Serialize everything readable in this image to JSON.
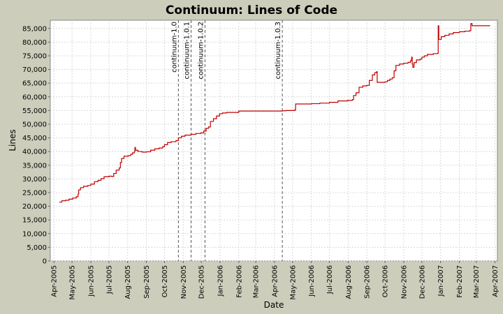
{
  "chart_data": {
    "type": "line",
    "title": "Continuum: Lines of Code",
    "xlabel": "Date",
    "ylabel": "Lines",
    "ylim": [
      0,
      88000
    ],
    "y_ticks": [
      0,
      5000,
      10000,
      15000,
      20000,
      25000,
      30000,
      35000,
      40000,
      45000,
      50000,
      55000,
      60000,
      65000,
      70000,
      75000,
      80000,
      85000
    ],
    "y_tick_labels": [
      "0",
      "5,000",
      "10,000",
      "15,000",
      "20,000",
      "25,000",
      "30,000",
      "35,000",
      "40,000",
      "45,000",
      "50,000",
      "55,000",
      "60,000",
      "65,000",
      "70,000",
      "75,000",
      "80,000",
      "85,000"
    ],
    "xlim": [
      "2005-03-26",
      "2007-04-05"
    ],
    "x_ticks": [
      "2005-04-01",
      "2005-05-01",
      "2005-06-01",
      "2005-07-01",
      "2005-08-01",
      "2005-09-01",
      "2005-10-01",
      "2005-11-01",
      "2005-12-01",
      "2006-01-01",
      "2006-02-01",
      "2006-03-01",
      "2006-04-01",
      "2006-05-01",
      "2006-06-01",
      "2006-07-01",
      "2006-08-01",
      "2006-09-01",
      "2006-10-01",
      "2006-11-01",
      "2006-12-01",
      "2007-01-01",
      "2007-02-01",
      "2007-03-01",
      "2007-04-01"
    ],
    "x_tick_labels": [
      "Apr-2005",
      "May-2005",
      "Jun-2005",
      "Jul-2005",
      "Aug-2005",
      "Sep-2005",
      "Oct-2005",
      "Nov-2005",
      "Dec-2005",
      "Jan-2006",
      "Feb-2006",
      "Mar-2006",
      "Apr-2006",
      "May-2006",
      "Jun-2006",
      "Jul-2006",
      "Aug-2006",
      "Sep-2006",
      "Oct-2006",
      "Nov-2006",
      "Dec-2006",
      "Jan-2007",
      "Feb-2007",
      "Mar-2007",
      "Apr-2007"
    ],
    "grid": true,
    "legend": "none",
    "markers": [
      {
        "label": "continuum-1.0",
        "date": "2005-10-24"
      },
      {
        "label": "continuum-1.0.1",
        "date": "2005-11-14"
      },
      {
        "label": "continuum-1.0.2",
        "date": "2005-12-07"
      },
      {
        "label": "continuum-1.0.3",
        "date": "2006-04-14"
      }
    ],
    "series": [
      {
        "color": "#c00000",
        "points": [
          [
            "2005-04-10",
            21500
          ],
          [
            "2005-04-14",
            22000
          ],
          [
            "2005-04-20",
            22200
          ],
          [
            "2005-04-26",
            22600
          ],
          [
            "2005-05-02",
            23000
          ],
          [
            "2005-05-08",
            23500
          ],
          [
            "2005-05-11",
            24500
          ],
          [
            "2005-05-12",
            26000
          ],
          [
            "2005-05-15",
            26800
          ],
          [
            "2005-05-20",
            27300
          ],
          [
            "2005-05-27",
            27600
          ],
          [
            "2005-06-01",
            28100
          ],
          [
            "2005-06-07",
            29000
          ],
          [
            "2005-06-13",
            29500
          ],
          [
            "2005-06-18",
            30100
          ],
          [
            "2005-06-23",
            30800
          ],
          [
            "2005-07-01",
            31000
          ],
          [
            "2005-07-06",
            30900
          ],
          [
            "2005-07-09",
            32000
          ],
          [
            "2005-07-13",
            33200
          ],
          [
            "2005-07-18",
            34000
          ],
          [
            "2005-07-20",
            36000
          ],
          [
            "2005-07-22",
            37500
          ],
          [
            "2005-07-26",
            38300
          ],
          [
            "2005-08-02",
            38500
          ],
          [
            "2005-08-06",
            39000
          ],
          [
            "2005-08-09",
            39500
          ],
          [
            "2005-08-12",
            40000
          ],
          [
            "2005-08-13",
            41500
          ],
          [
            "2005-08-14",
            40500
          ],
          [
            "2005-08-18",
            40000
          ],
          [
            "2005-08-25",
            39800
          ],
          [
            "2005-09-01",
            39900
          ],
          [
            "2005-09-08",
            40500
          ],
          [
            "2005-09-15",
            41000
          ],
          [
            "2005-09-22",
            41300
          ],
          [
            "2005-09-28",
            41800
          ],
          [
            "2005-10-01",
            42500
          ],
          [
            "2005-10-06",
            43300
          ],
          [
            "2005-10-12",
            43600
          ],
          [
            "2005-10-20",
            44000
          ],
          [
            "2005-10-24",
            45000
          ],
          [
            "2005-10-29",
            45600
          ],
          [
            "2005-11-04",
            46000
          ],
          [
            "2005-11-14",
            46300
          ],
          [
            "2005-11-22",
            46600
          ],
          [
            "2005-11-30",
            46800
          ],
          [
            "2005-12-05",
            47500
          ],
          [
            "2005-12-09",
            48500
          ],
          [
            "2005-12-13",
            49000
          ],
          [
            "2005-12-16",
            51000
          ],
          [
            "2005-12-21",
            52000
          ],
          [
            "2005-12-26",
            53000
          ],
          [
            "2005-12-31",
            53800
          ],
          [
            "2006-01-05",
            54100
          ],
          [
            "2006-01-12",
            54300
          ],
          [
            "2006-01-31",
            54400
          ],
          [
            "2006-02-01",
            54800
          ],
          [
            "2006-03-01",
            54800
          ],
          [
            "2006-04-14",
            54900
          ],
          [
            "2006-04-20",
            55000
          ],
          [
            "2006-05-05",
            55300
          ],
          [
            "2006-05-06",
            57400
          ],
          [
            "2006-06-01",
            57500
          ],
          [
            "2006-06-15",
            57700
          ],
          [
            "2006-07-01",
            58000
          ],
          [
            "2006-07-15",
            58500
          ],
          [
            "2006-07-31",
            58700
          ],
          [
            "2006-08-08",
            59000
          ],
          [
            "2006-08-10",
            60500
          ],
          [
            "2006-08-14",
            61500
          ],
          [
            "2006-08-19",
            63500
          ],
          [
            "2006-08-25",
            64000
          ],
          [
            "2006-09-01",
            64200
          ],
          [
            "2006-09-05",
            66000
          ],
          [
            "2006-09-10",
            68000
          ],
          [
            "2006-09-14",
            68800
          ],
          [
            "2006-09-17",
            69200
          ],
          [
            "2006-09-18",
            65300
          ],
          [
            "2006-09-25",
            65300
          ],
          [
            "2006-10-01",
            65500
          ],
          [
            "2006-10-05",
            66000
          ],
          [
            "2006-10-09",
            66500
          ],
          [
            "2006-10-13",
            67000
          ],
          [
            "2006-10-16",
            69500
          ],
          [
            "2006-10-19",
            71500
          ],
          [
            "2006-10-25",
            72000
          ],
          [
            "2006-11-01",
            72300
          ],
          [
            "2006-11-08",
            72600
          ],
          [
            "2006-11-12",
            73200
          ],
          [
            "2006-11-14",
            74500
          ],
          [
            "2006-11-15",
            72000
          ],
          [
            "2006-11-16",
            70800
          ],
          [
            "2006-11-18",
            72500
          ],
          [
            "2006-11-22",
            73500
          ],
          [
            "2006-11-28",
            73800
          ],
          [
            "2006-12-01",
            74500
          ],
          [
            "2006-12-05",
            75000
          ],
          [
            "2006-12-10",
            75500
          ],
          [
            "2006-12-20",
            75800
          ],
          [
            "2006-12-27",
            75900
          ],
          [
            "2006-12-28",
            86000
          ],
          [
            "2006-12-29",
            81000
          ],
          [
            "2007-01-02",
            82000
          ],
          [
            "2007-01-08",
            82500
          ],
          [
            "2007-01-15",
            83000
          ],
          [
            "2007-01-22",
            83500
          ],
          [
            "2007-02-01",
            83800
          ],
          [
            "2007-02-10",
            84000
          ],
          [
            "2007-02-18",
            84200
          ],
          [
            "2007-02-20",
            86800
          ],
          [
            "2007-02-22",
            86000
          ],
          [
            "2007-03-10",
            86000
          ],
          [
            "2007-03-24",
            86000
          ]
        ]
      }
    ]
  }
}
